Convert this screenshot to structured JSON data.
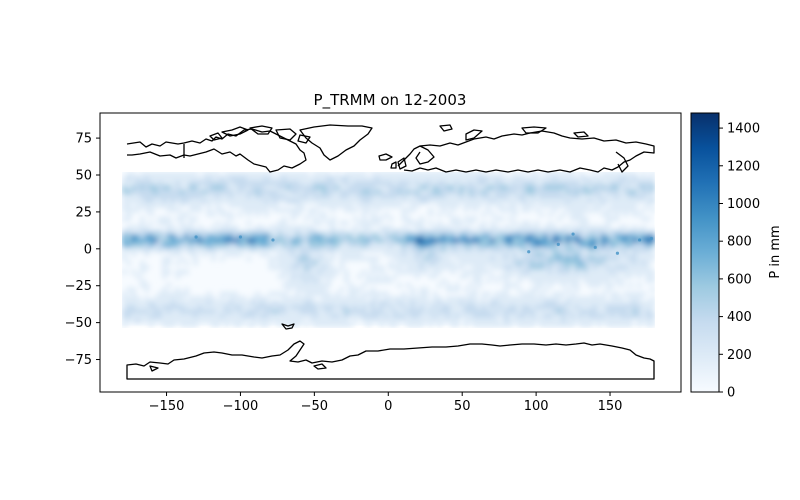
{
  "chart_data": {
    "type": "heatmap",
    "title": "P_TRMM on 12-2003",
    "xlabel": "",
    "ylabel": "",
    "xlim": [
      -195,
      198
    ],
    "ylim": [
      -97,
      92
    ],
    "data_extent": {
      "lon": [
        -180,
        180
      ],
      "lat": [
        -52,
        52
      ]
    },
    "x_ticks": [
      -150,
      -100,
      -50,
      0,
      50,
      100,
      150
    ],
    "x_tick_labels": [
      "−150",
      "−100",
      "−50",
      "0",
      "50",
      "100",
      "150"
    ],
    "y_ticks": [
      75,
      50,
      25,
      0,
      -25,
      -50,
      -75
    ],
    "y_tick_labels": [
      "75",
      "50",
      "25",
      "0",
      "−25",
      "−50",
      "−75"
    ],
    "colorbar": {
      "label": "P in mm",
      "range": [
        0,
        1480
      ],
      "ticks": [
        0,
        200,
        400,
        600,
        800,
        1000,
        1200,
        1400
      ],
      "tick_labels": [
        "0",
        "200",
        "400",
        "600",
        "800",
        "1000",
        "1200",
        "1400"
      ],
      "colormap": "Blues",
      "colors": [
        "#f7fbff",
        "#deebf7",
        "#c6dbef",
        "#9ecae1",
        "#6baed6",
        "#4292c6",
        "#2171b5",
        "#08519c",
        "#08306b"
      ]
    },
    "coastline_color": "#000000",
    "grid": false
  }
}
